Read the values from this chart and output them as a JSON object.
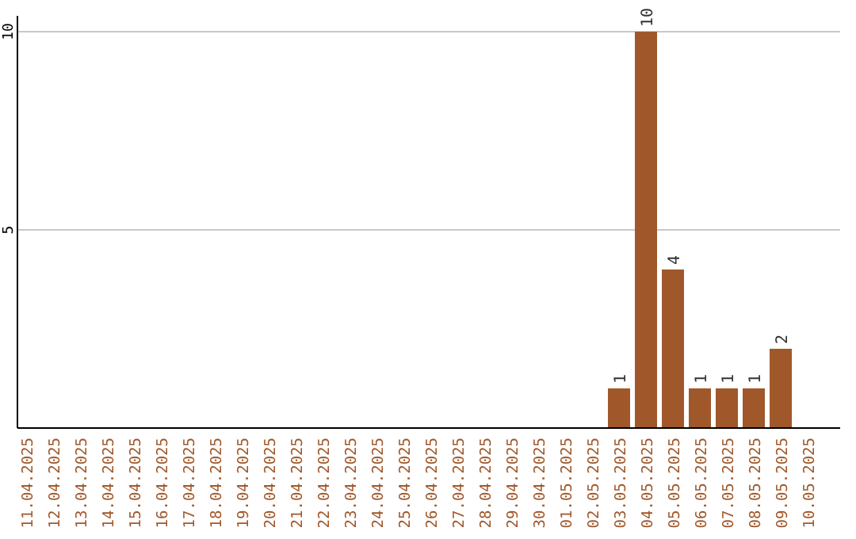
{
  "chart_data": {
    "type": "bar",
    "categories": [
      "11.04.2025",
      "12.04.2025",
      "13.04.2025",
      "14.04.2025",
      "15.04.2025",
      "16.04.2025",
      "17.04.2025",
      "18.04.2025",
      "19.04.2025",
      "20.04.2025",
      "21.04.2025",
      "22.04.2025",
      "23.04.2025",
      "24.04.2025",
      "25.04.2025",
      "26.04.2025",
      "27.04.2025",
      "28.04.2025",
      "29.04.2025",
      "30.04.2025",
      "01.05.2025",
      "02.05.2025",
      "03.05.2025",
      "04.05.2025",
      "05.05.2025",
      "06.05.2025",
      "07.05.2025",
      "08.05.2025",
      "09.05.2025",
      "10.05.2025"
    ],
    "values": [
      0,
      0,
      0,
      0,
      0,
      0,
      0,
      0,
      0,
      0,
      0,
      0,
      0,
      0,
      0,
      0,
      0,
      0,
      0,
      0,
      0,
      0,
      1,
      10,
      4,
      1,
      1,
      1,
      2,
      0
    ],
    "value_labels": [
      null,
      null,
      null,
      null,
      null,
      null,
      null,
      null,
      null,
      null,
      null,
      null,
      null,
      null,
      null,
      null,
      null,
      null,
      null,
      null,
      null,
      null,
      "1",
      "10",
      "4",
      "1",
      "1",
      "1",
      "2",
      null
    ],
    "color": "#a0582a",
    "ylim": [
      0,
      10.4
    ],
    "yticks": [
      5,
      10
    ],
    "grid": "y"
  }
}
